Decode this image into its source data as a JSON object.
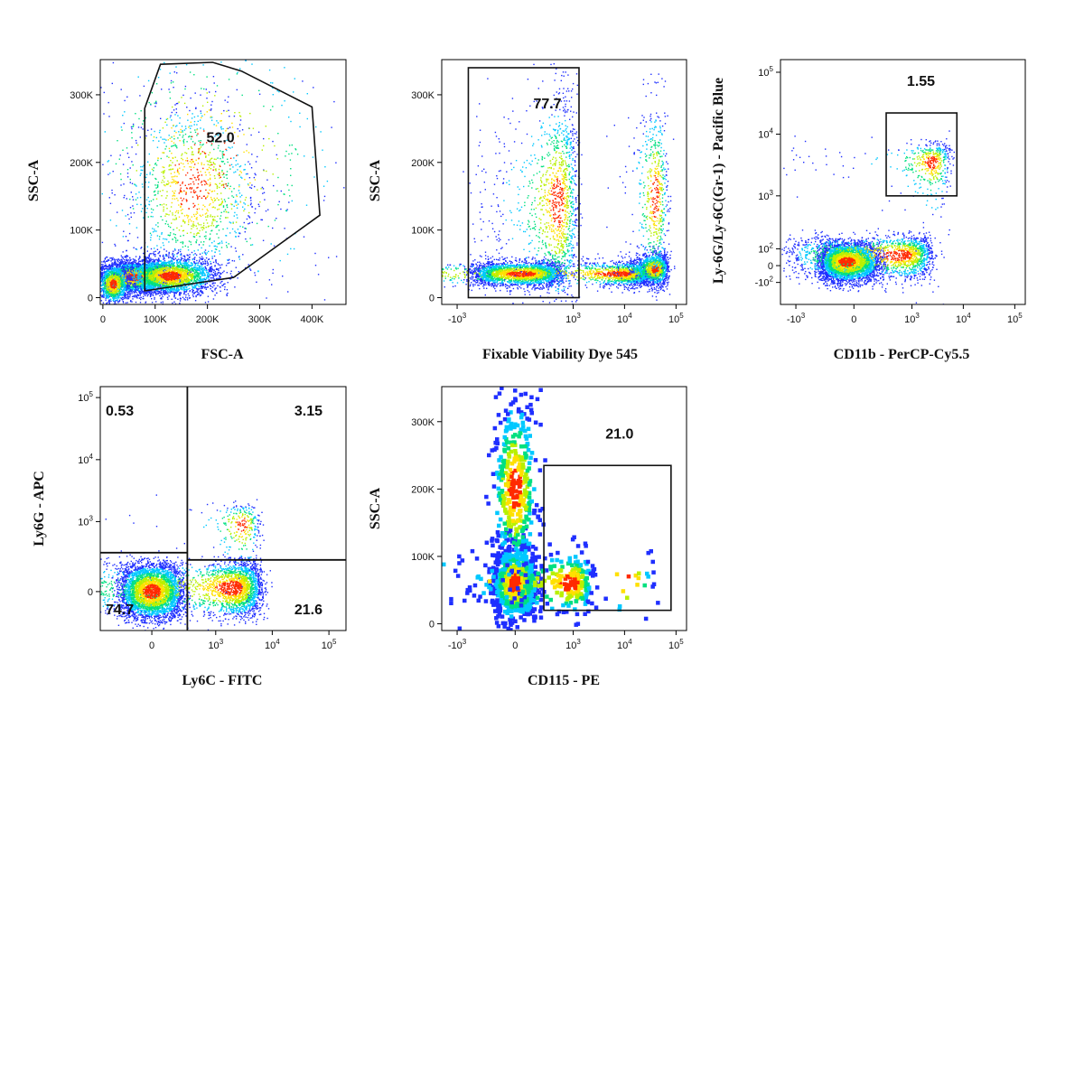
{
  "chart_data": [
    {
      "type": "scatter",
      "title": "",
      "xlabel": "FSC-A",
      "ylabel": "SSC-A",
      "x_scale": "linear",
      "y_scale": "linear",
      "xlim": [
        -5000,
        465000
      ],
      "ylim": [
        -10000,
        352000
      ],
      "x_ticks": [
        {
          "value": 0,
          "label": "0"
        },
        {
          "value": 100000,
          "label": "100K"
        },
        {
          "value": 200000,
          "label": "200K"
        },
        {
          "value": 300000,
          "label": "300K"
        },
        {
          "value": 400000,
          "label": "400K"
        }
      ],
      "y_ticks": [
        {
          "value": 0,
          "label": "0"
        },
        {
          "value": 100000,
          "label": "100K"
        },
        {
          "value": 200000,
          "label": "200K"
        },
        {
          "value": 300000,
          "label": "300K"
        }
      ],
      "gates": [
        {
          "shape": "polygon",
          "label": "52.0",
          "label_at": [
            225000,
            230000
          ],
          "points": [
            [
              80000,
              10000
            ],
            [
              80000,
              280000
            ],
            [
              110000,
              345000
            ],
            [
              210000,
              348000
            ],
            [
              265000,
              335000
            ],
            [
              400000,
              282000
            ],
            [
              415000,
              122000
            ],
            [
              250000,
              30000
            ]
          ]
        }
      ],
      "populations": [
        {
          "center": [
            60000,
            30000
          ],
          "spread": [
            35000,
            12000
          ],
          "n": 3200
        },
        {
          "center": [
            130000,
            32000
          ],
          "spread": [
            45000,
            14000
          ],
          "n": 2600
        },
        {
          "center": [
            20000,
            20000
          ],
          "spread": [
            15000,
            15000
          ],
          "n": 900
        },
        {
          "center": [
            170000,
            160000
          ],
          "spread": [
            65000,
            70000
          ],
          "n": 1100
        },
        {
          "center": [
            200000,
            200000
          ],
          "spread": [
            140000,
            110000
          ],
          "n": 500
        }
      ]
    },
    {
      "type": "scatter",
      "title": "",
      "xlabel": "Fixable Viability Dye 545",
      "ylabel": "SSC-A",
      "x_scale": "biex",
      "y_scale": "linear",
      "xlim": [
        -2000,
        160000
      ],
      "ylim": [
        -10000,
        352000
      ],
      "x_ticks": [
        {
          "value": -1000,
          "label": "-10",
          "sup": "3"
        },
        {
          "value": 1000,
          "label": "10",
          "sup": "3"
        },
        {
          "value": 10000,
          "label": "10",
          "sup": "4"
        },
        {
          "value": 100000,
          "label": "10",
          "sup": "5"
        }
      ],
      "y_ticks": [
        {
          "value": 0,
          "label": "0"
        },
        {
          "value": 100000,
          "label": "100K"
        },
        {
          "value": 200000,
          "label": "200K"
        },
        {
          "value": 300000,
          "label": "300K"
        }
      ],
      "gates": [
        {
          "shape": "rect",
          "label": "77.7",
          "label_at": [
            300,
            280000
          ],
          "x": [
            -600,
            1300
          ],
          "y": [
            0,
            340000
          ]
        }
      ],
      "populations": [
        {
          "center": [
            50,
            35000
          ],
          "spread": [
            250,
            9000
          ],
          "n": 2600
        },
        {
          "center": [
            500,
            140000
          ],
          "spread": [
            350,
            80000
          ],
          "n": 1300
        },
        {
          "center": [
            8000,
            35000
          ],
          "spread": [
            12000,
            9000
          ],
          "n": 2000
        },
        {
          "center": [
            40000,
            42000
          ],
          "spread": [
            15000,
            12000
          ],
          "n": 1200
        },
        {
          "center": [
            40000,
            150000
          ],
          "spread": [
            15000,
            70000
          ],
          "n": 600
        }
      ]
    },
    {
      "type": "scatter",
      "title": "",
      "xlabel": "CD11b - PerCP-Cy5.5",
      "ylabel": "Ly-6G/Ly-6C(Gr-1) - Pacific Blue",
      "x_scale": "biex",
      "y_scale": "biex",
      "xlim": [
        -2000,
        160000
      ],
      "ylim": [
        -300,
        160000
      ],
      "x_ticks": [
        {
          "value": -1000,
          "label": "-10",
          "sup": "3"
        },
        {
          "value": 0,
          "label": "0"
        },
        {
          "value": 1000,
          "label": "10",
          "sup": "3"
        },
        {
          "value": 10000,
          "label": "10",
          "sup": "4"
        },
        {
          "value": 100000,
          "label": "10",
          "sup": "5"
        }
      ],
      "y_ticks": [
        {
          "value": -100,
          "label": "-10",
          "sup": "2"
        },
        {
          "value": 0,
          "label": "0"
        },
        {
          "value": 100,
          "label": "10",
          "sup": "2"
        },
        {
          "value": 1000,
          "label": "10",
          "sup": "3"
        },
        {
          "value": 10000,
          "label": "10",
          "sup": "4"
        },
        {
          "value": 100000,
          "label": "10",
          "sup": "5"
        }
      ],
      "gates": [
        {
          "shape": "rect",
          "label": "1.55",
          "label_at": [
            1500,
            60000
          ],
          "x": [
            300,
            7500
          ],
          "y": [
            1000,
            22000
          ]
        }
      ],
      "populations": [
        {
          "center": [
            -50,
            20
          ],
          "spread": [
            130,
            60
          ],
          "n": 3800
        },
        {
          "center": [
            600,
            60
          ],
          "spread": [
            900,
            70
          ],
          "n": 1500
        },
        {
          "center": [
            2500,
            3500
          ],
          "spread": [
            1500,
            1800
          ],
          "n": 500
        }
      ]
    },
    {
      "type": "scatter",
      "title": "",
      "xlabel": "Ly6C - FITC",
      "ylabel": "Ly6G - APC",
      "x_scale": "biex",
      "y_scale": "biex",
      "xlim": [
        -600,
        200000
      ],
      "ylim": [
        -300,
        150000
      ],
      "x_ticks": [
        {
          "value": 0,
          "label": "0"
        },
        {
          "value": 1000,
          "label": "10",
          "sup": "3"
        },
        {
          "value": 10000,
          "label": "10",
          "sup": "4"
        },
        {
          "value": 100000,
          "label": "10",
          "sup": "5"
        }
      ],
      "y_ticks": [
        {
          "value": 0,
          "label": "0"
        },
        {
          "value": 1000,
          "label": "10",
          "sup": "3"
        },
        {
          "value": 10000,
          "label": "10",
          "sup": "4"
        },
        {
          "value": 100000,
          "label": "10",
          "sup": "5"
        }
      ],
      "quadrant": {
        "x": 300,
        "y_left": 300,
        "y_right": 220
      },
      "quadrant_labels": [
        {
          "label": "0.53",
          "position": "top-left"
        },
        {
          "label": "3.15",
          "position": "top-right"
        },
        {
          "label": "74.7",
          "position": "bottom-left"
        },
        {
          "label": "21.6",
          "position": "bottom-right"
        }
      ],
      "populations": [
        {
          "center": [
            0,
            0
          ],
          "spread": [
            120,
            90
          ],
          "n": 3800
        },
        {
          "center": [
            2000,
            20
          ],
          "spread": [
            2200,
            90
          ],
          "n": 2400
        },
        {
          "center": [
            3000,
            900
          ],
          "spread": [
            1500,
            500
          ],
          "n": 300
        }
      ]
    },
    {
      "type": "scatter",
      "title": "",
      "xlabel": "CD115 - PE",
      "ylabel": "SSC-A",
      "x_scale": "biex",
      "y_scale": "linear",
      "xlim": [
        -2000,
        160000
      ],
      "ylim": [
        -10000,
        352000
      ],
      "x_ticks": [
        {
          "value": -1000,
          "label": "-10",
          "sup": "3"
        },
        {
          "value": 0,
          "label": "0"
        },
        {
          "value": 1000,
          "label": "10",
          "sup": "3"
        },
        {
          "value": 10000,
          "label": "10",
          "sup": "4"
        },
        {
          "value": 100000,
          "label": "10",
          "sup": "5"
        }
      ],
      "y_ticks": [
        {
          "value": 0,
          "label": "0"
        },
        {
          "value": 100000,
          "label": "100K"
        },
        {
          "value": 200000,
          "label": "200K"
        },
        {
          "value": 300000,
          "label": "300K"
        }
      ],
      "gates": [
        {
          "shape": "rect",
          "label": "21.0",
          "label_at": [
            8000,
            275000
          ],
          "x": [
            250,
            80000
          ],
          "y": [
            20000,
            235000
          ]
        }
      ],
      "populations": [
        {
          "center": [
            0,
            60000
          ],
          "spread": [
            90,
            30000
          ],
          "n": 700
        },
        {
          "center": [
            0,
            200000
          ],
          "spread": [
            90,
            70000
          ],
          "n": 380
        },
        {
          "center": [
            900,
            60000
          ],
          "spread": [
            800,
            25000
          ],
          "n": 260
        },
        {
          "center": [
            10000,
            60000
          ],
          "spread": [
            15000,
            25000
          ],
          "n": 30
        }
      ]
    }
  ]
}
